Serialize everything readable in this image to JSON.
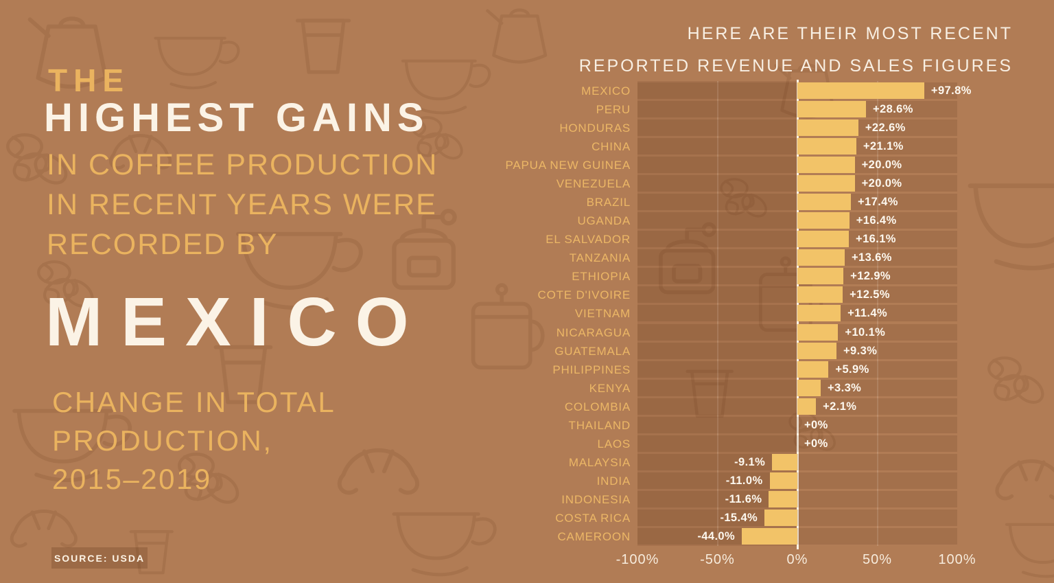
{
  "infographic": {
    "headline": {
      "pre": "THE",
      "main": "HIGHEST GAINS",
      "line2": "IN COFFEE PRODUCTION",
      "line3": "IN RECENT YEARS WERE",
      "line4": "RECORDED BY",
      "country_highlight": "MEXICO"
    },
    "subtitle": {
      "line1": "CHANGE IN TOTAL",
      "line2": "PRODUCTION,",
      "line3": "2015–2019"
    },
    "source": "SOURCE: USDA",
    "chart_header": {
      "line1": "HERE ARE THEIR MOST RECENT",
      "line2": "REPORTED REVENUE AND SALES FIGURES"
    }
  },
  "colors": {
    "background": "#b17c55",
    "bar": "#f2c368",
    "gold_text": "#eab35f",
    "country_label": "#ecb766",
    "cream_text": "#fbf3e6",
    "zero_line": "#fdf3e4",
    "row_band": "rgba(90,48,20,0.15)"
  },
  "chart_data": {
    "type": "bar",
    "orientation": "horizontal",
    "xlim": [
      -100,
      100
    ],
    "x_axis_ticks": [
      "-100%",
      "-50%",
      "0%",
      "50%",
      "100%"
    ],
    "gridlines": true,
    "legend": false,
    "rows": [
      {
        "country": "MEXICO",
        "value": 97.8,
        "label": "+97.8%"
      },
      {
        "country": "PERU",
        "value": 28.6,
        "label": "+28.6%"
      },
      {
        "country": "HONDURAS",
        "value": 22.6,
        "label": "+22.6%"
      },
      {
        "country": "CHINA",
        "value": 21.1,
        "label": "+21.1%"
      },
      {
        "country": "PAPUA NEW GUINEA",
        "value": 20.0,
        "label": "+20.0%"
      },
      {
        "country": "VENEZUELA",
        "value": 20.0,
        "label": "+20.0%"
      },
      {
        "country": "BRAZIL",
        "value": 17.4,
        "label": "+17.4%"
      },
      {
        "country": "UGANDA",
        "value": 16.4,
        "label": "+16.4%"
      },
      {
        "country": "EL SALVADOR",
        "value": 16.1,
        "label": "+16.1%"
      },
      {
        "country": "TANZANIA",
        "value": 13.6,
        "label": "+13.6%"
      },
      {
        "country": "ETHIOPIA",
        "value": 12.9,
        "label": "+12.9%"
      },
      {
        "country": "COTE D'IVOIRE",
        "value": 12.5,
        "label": "+12.5%"
      },
      {
        "country": "VIETNAM",
        "value": 11.4,
        "label": "+11.4%"
      },
      {
        "country": "NICARAGUA",
        "value": 10.1,
        "label": "+10.1%"
      },
      {
        "country": "GUATEMALA",
        "value": 9.3,
        "label": "+9.3%"
      },
      {
        "country": "PHILIPPINES",
        "value": 5.9,
        "label": "+5.9%"
      },
      {
        "country": "KENYA",
        "value": 3.3,
        "label": "+3.3%"
      },
      {
        "country": "COLOMBIA",
        "value": 2.1,
        "label": "+2.1%"
      },
      {
        "country": "THAILAND",
        "value": 0,
        "label": "+0%"
      },
      {
        "country": "LAOS",
        "value": 0,
        "label": "+0%"
      },
      {
        "country": "MALAYSIA",
        "value": -9.1,
        "label": "-9.1%"
      },
      {
        "country": "INDIA",
        "value": -11.0,
        "label": "-11.0%"
      },
      {
        "country": "INDONESIA",
        "value": -11.6,
        "label": "-11.6%"
      },
      {
        "country": "COSTA RICA",
        "value": -15.4,
        "label": "-15.4%"
      },
      {
        "country": "CAMEROON",
        "value": -44.0,
        "label": "-44.0%"
      }
    ]
  }
}
